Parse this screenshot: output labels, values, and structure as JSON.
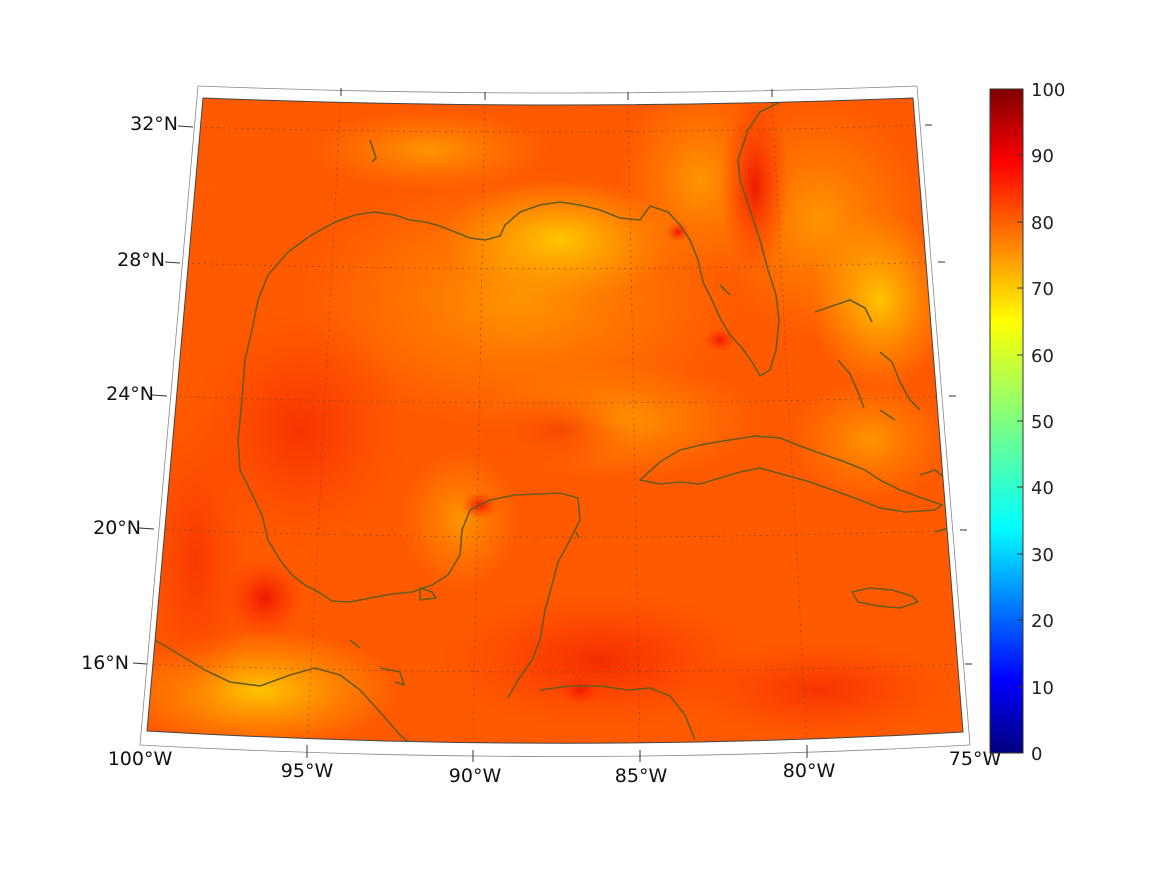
{
  "map": {
    "lon_labels": [
      "100°W",
      "95°W",
      "90°W",
      "85°W",
      "80°W",
      "75°W"
    ],
    "lat_labels": [
      "16°N",
      "20°N",
      "24°N",
      "28°N",
      "32°N"
    ],
    "land_outline_color": "#6b5a1e",
    "field_colors": [
      "#ff2200",
      "#ff5a00",
      "#ff8a00",
      "#ffb400",
      "#ffd200"
    ]
  },
  "colorbar": {
    "ticks": [
      "100",
      "90",
      "80",
      "70",
      "60",
      "50",
      "40",
      "30",
      "20",
      "10",
      "0"
    ],
    "range": [
      0,
      100
    ],
    "colormap": "jet"
  }
}
